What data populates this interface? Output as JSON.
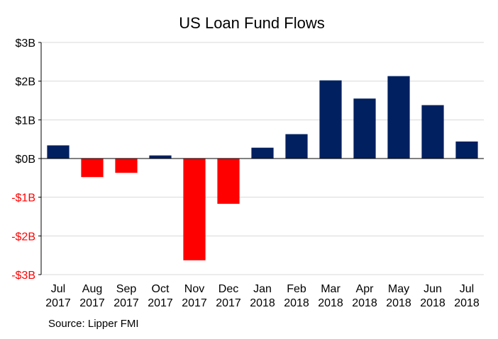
{
  "chart_data": {
    "type": "bar",
    "title": "US Loan Fund Flows",
    "categories": [
      [
        "Jul",
        "2017"
      ],
      [
        "Aug",
        "2017"
      ],
      [
        "Sep",
        "2017"
      ],
      [
        "Oct",
        "2017"
      ],
      [
        "Nov",
        "2017"
      ],
      [
        "Dec",
        "2017"
      ],
      [
        "Jan",
        "2018"
      ],
      [
        "Feb",
        "2018"
      ],
      [
        "Mar",
        "2018"
      ],
      [
        "Apr",
        "2018"
      ],
      [
        "May",
        "2018"
      ],
      [
        "Jun",
        "2018"
      ],
      [
        "Jul",
        "2018"
      ]
    ],
    "values": [
      0.34,
      -0.48,
      -0.37,
      0.08,
      -2.63,
      -1.17,
      0.28,
      0.63,
      2.02,
      1.55,
      2.13,
      1.38,
      0.44
    ],
    "unit": "$B",
    "ylim": [
      -3,
      3
    ],
    "yticks": [
      3,
      2,
      1,
      0,
      -1,
      -2,
      -3
    ],
    "ytick_labels": [
      "$3B",
      "$2B",
      "$1B",
      "$0B",
      "-$1B",
      "-$2B",
      "-$3B"
    ],
    "grid": true,
    "xlabel": "",
    "ylabel": "",
    "colors": {
      "positive": "#002060",
      "negative": "#ff0000",
      "positive_label": "#000000",
      "negative_label": "#ff0000",
      "grid": "#d9d9d9",
      "axis": "#000000"
    }
  },
  "source": "Source: Lipper FMI"
}
